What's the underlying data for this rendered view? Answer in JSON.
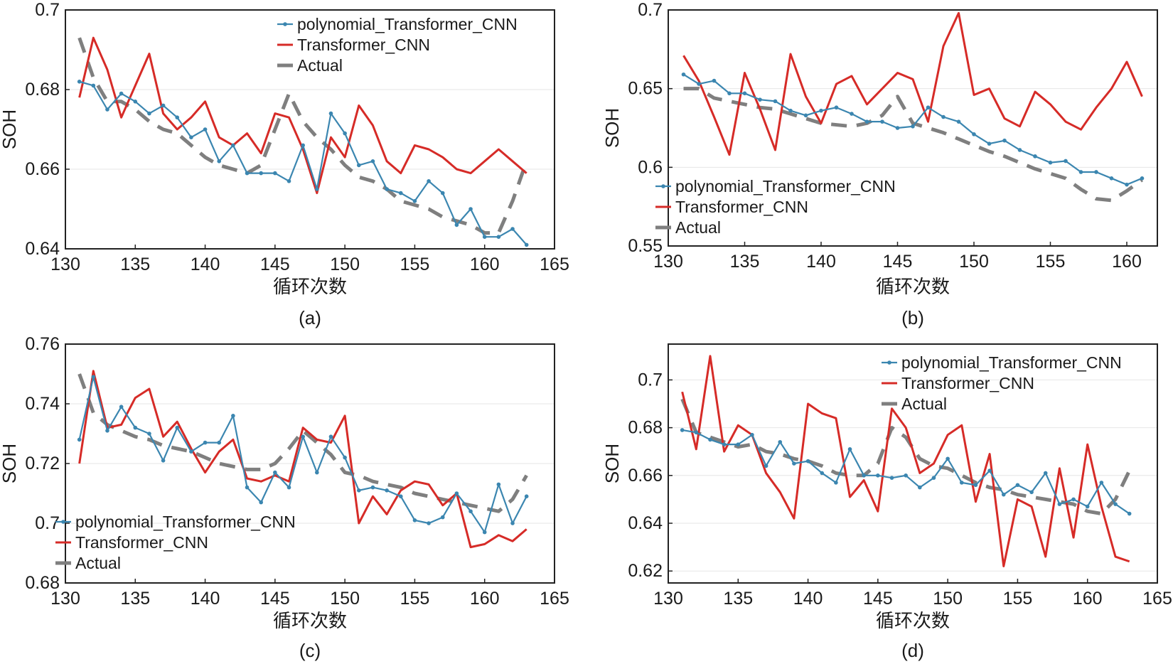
{
  "colors": {
    "model": "#3b86b0",
    "baseline": "#d62b27",
    "actual": "#7f7f7f"
  },
  "chart_data": [
    {
      "panel": "(a)",
      "type": "line",
      "xlabel": "循环次数",
      "ylabel": "SOH",
      "xlim": [
        130,
        165
      ],
      "ylim": [
        0.64,
        0.7
      ],
      "xticks": [
        "130",
        "135",
        "140",
        "145",
        "150",
        "155",
        "160",
        "165"
      ],
      "yticks": [
        "0.64",
        "0.66",
        "0.68",
        "0.7"
      ],
      "legend": "top-right",
      "series": [
        {
          "name": "polynomial_Transformer_CNN",
          "x": [
            131,
            132,
            133,
            134,
            135,
            136,
            137,
            138,
            139,
            140,
            141,
            142,
            143,
            144,
            145,
            146,
            147,
            148,
            149,
            150,
            151,
            152,
            153,
            154,
            155,
            156,
            157,
            158,
            159,
            160,
            161,
            162,
            163
          ],
          "values": [
            0.682,
            0.681,
            0.675,
            0.679,
            0.677,
            0.674,
            0.676,
            0.673,
            0.668,
            0.67,
            0.662,
            0.666,
            0.659,
            0.659,
            0.659,
            0.657,
            0.666,
            0.655,
            0.674,
            0.669,
            0.661,
            0.662,
            0.655,
            0.654,
            0.652,
            0.657,
            0.654,
            0.646,
            0.65,
            0.643,
            0.643,
            0.645,
            0.641
          ]
        },
        {
          "name": "Transformer_CNN",
          "x": [
            131,
            132,
            133,
            134,
            135,
            136,
            137,
            138,
            139,
            140,
            141,
            142,
            143,
            144,
            145,
            146,
            147,
            148,
            149,
            150,
            151,
            152,
            153,
            154,
            155,
            156,
            157,
            158,
            159,
            160,
            161,
            162,
            163
          ],
          "values": [
            0.678,
            0.693,
            0.685,
            0.673,
            0.681,
            0.689,
            0.674,
            0.67,
            0.673,
            0.677,
            0.668,
            0.666,
            0.669,
            0.664,
            0.674,
            0.673,
            0.665,
            0.654,
            0.668,
            0.663,
            0.676,
            0.671,
            0.662,
            0.659,
            0.666,
            0.665,
            0.663,
            0.66,
            0.659,
            0.662,
            0.665,
            0.662,
            0.659
          ]
        },
        {
          "name": "Actual",
          "x": [
            131,
            132,
            133,
            134,
            135,
            136,
            137,
            138,
            139,
            140,
            141,
            142,
            143,
            144,
            145,
            146,
            147,
            148,
            149,
            150,
            151,
            152,
            153,
            154,
            155,
            156,
            157,
            158,
            159,
            160,
            161,
            162,
            163
          ],
          "values": [
            0.693,
            0.683,
            0.677,
            0.677,
            0.675,
            0.672,
            0.67,
            0.669,
            0.666,
            0.663,
            0.661,
            0.66,
            0.659,
            0.661,
            0.67,
            0.679,
            0.672,
            0.668,
            0.665,
            0.661,
            0.658,
            0.657,
            0.655,
            0.652,
            0.651,
            0.65,
            0.648,
            0.647,
            0.646,
            0.644,
            0.644,
            0.652,
            0.662
          ]
        }
      ]
    },
    {
      "panel": "(b)",
      "type": "line",
      "xlabel": "循环次数",
      "ylabel": "SOH",
      "xlim": [
        130,
        162
      ],
      "ylim": [
        0.55,
        0.7
      ],
      "xticks": [
        "130",
        "135",
        "140",
        "145",
        "150",
        "155",
        "160"
      ],
      "yticks": [
        "0.55",
        "0.6",
        "0.65",
        "0.7"
      ],
      "legend": "bottom-left",
      "series": [
        {
          "name": "polynomial_Transformer_CNN",
          "x": [
            131,
            132,
            133,
            134,
            135,
            136,
            137,
            138,
            139,
            140,
            141,
            142,
            143,
            144,
            145,
            146,
            147,
            148,
            149,
            150,
            151,
            152,
            153,
            154,
            155,
            156,
            157,
            158,
            159,
            160,
            161
          ],
          "values": [
            0.659,
            0.653,
            0.655,
            0.647,
            0.647,
            0.643,
            0.642,
            0.636,
            0.633,
            0.636,
            0.638,
            0.634,
            0.629,
            0.629,
            0.625,
            0.626,
            0.638,
            0.632,
            0.629,
            0.621,
            0.615,
            0.617,
            0.611,
            0.607,
            0.603,
            0.604,
            0.597,
            0.597,
            0.593,
            0.589,
            0.593
          ]
        },
        {
          "name": "Transformer_CNN",
          "x": [
            131,
            132,
            133,
            134,
            135,
            136,
            137,
            138,
            139,
            140,
            141,
            142,
            143,
            144,
            145,
            146,
            147,
            148,
            149,
            150,
            151,
            152,
            153,
            154,
            155,
            156,
            157,
            158,
            159,
            160,
            161
          ],
          "values": [
            0.671,
            0.655,
            0.632,
            0.608,
            0.66,
            0.637,
            0.611,
            0.672,
            0.645,
            0.628,
            0.653,
            0.658,
            0.64,
            0.65,
            0.66,
            0.656,
            0.629,
            0.677,
            0.698,
            0.646,
            0.65,
            0.631,
            0.626,
            0.648,
            0.64,
            0.629,
            0.624,
            0.638,
            0.65,
            0.667,
            0.645
          ]
        },
        {
          "name": "Actual",
          "x": [
            131,
            132,
            133,
            134,
            135,
            136,
            137,
            138,
            139,
            140,
            141,
            142,
            143,
            144,
            145,
            146,
            147,
            148,
            149,
            150,
            151,
            152,
            153,
            154,
            155,
            156,
            157,
            158,
            159,
            160,
            161
          ],
          "values": [
            0.65,
            0.65,
            0.644,
            0.642,
            0.64,
            0.638,
            0.637,
            0.634,
            0.631,
            0.628,
            0.627,
            0.626,
            0.628,
            0.633,
            0.645,
            0.628,
            0.625,
            0.622,
            0.618,
            0.614,
            0.61,
            0.607,
            0.603,
            0.599,
            0.596,
            0.593,
            0.586,
            0.58,
            0.579,
            0.585,
            0.592
          ]
        }
      ]
    },
    {
      "panel": "(c)",
      "type": "line",
      "xlabel": "循环次数",
      "ylabel": "SOH",
      "xlim": [
        130,
        165
      ],
      "ylim": [
        0.68,
        0.76
      ],
      "xticks": [
        "130",
        "135",
        "140",
        "145",
        "150",
        "155",
        "160",
        "165"
      ],
      "yticks": [
        "0.68",
        "0.7",
        "0.72",
        "0.74",
        "0.76"
      ],
      "legend": "bottom-left",
      "series": [
        {
          "name": "polynomial_Transformer_CNN",
          "x": [
            131,
            132,
            133,
            134,
            135,
            136,
            137,
            138,
            139,
            140,
            141,
            142,
            143,
            144,
            145,
            146,
            147,
            148,
            149,
            150,
            151,
            152,
            153,
            154,
            155,
            156,
            157,
            158,
            159,
            160,
            161,
            162,
            163
          ],
          "values": [
            0.728,
            0.749,
            0.731,
            0.739,
            0.732,
            0.73,
            0.721,
            0.732,
            0.724,
            0.727,
            0.727,
            0.736,
            0.712,
            0.707,
            0.717,
            0.712,
            0.729,
            0.717,
            0.729,
            0.722,
            0.711,
            0.712,
            0.711,
            0.709,
            0.701,
            0.7,
            0.702,
            0.71,
            0.704,
            0.697,
            0.713,
            0.7,
            0.709
          ]
        },
        {
          "name": "Transformer_CNN",
          "x": [
            131,
            132,
            133,
            134,
            135,
            136,
            137,
            138,
            139,
            140,
            141,
            142,
            143,
            144,
            145,
            146,
            147,
            148,
            149,
            150,
            151,
            152,
            153,
            154,
            155,
            156,
            157,
            158,
            159,
            160,
            161,
            162,
            163
          ],
          "values": [
            0.72,
            0.751,
            0.732,
            0.733,
            0.742,
            0.745,
            0.729,
            0.734,
            0.725,
            0.717,
            0.724,
            0.728,
            0.715,
            0.714,
            0.716,
            0.714,
            0.732,
            0.728,
            0.727,
            0.736,
            0.7,
            0.709,
            0.703,
            0.711,
            0.714,
            0.713,
            0.706,
            0.71,
            0.692,
            0.693,
            0.696,
            0.694,
            0.698
          ]
        },
        {
          "name": "Actual",
          "x": [
            131,
            132,
            133,
            134,
            135,
            136,
            137,
            138,
            139,
            140,
            141,
            142,
            143,
            144,
            145,
            146,
            147,
            148,
            149,
            150,
            151,
            152,
            153,
            154,
            155,
            156,
            157,
            158,
            159,
            160,
            161,
            162,
            163
          ],
          "values": [
            0.75,
            0.737,
            0.733,
            0.731,
            0.729,
            0.728,
            0.726,
            0.725,
            0.724,
            0.722,
            0.72,
            0.719,
            0.718,
            0.718,
            0.72,
            0.725,
            0.731,
            0.727,
            0.723,
            0.717,
            0.716,
            0.714,
            0.713,
            0.712,
            0.71,
            0.709,
            0.708,
            0.707,
            0.706,
            0.705,
            0.704,
            0.708,
            0.716
          ]
        }
      ]
    },
    {
      "panel": "(d)",
      "type": "line",
      "xlabel": "循环次数",
      "ylabel": "SOH",
      "xlim": [
        130,
        165
      ],
      "ylim": [
        0.615,
        0.715
      ],
      "xticks": [
        "130",
        "135",
        "140",
        "145",
        "150",
        "155",
        "160",
        "165"
      ],
      "yticks": [
        "0.62",
        "0.64",
        "0.66",
        "0.68",
        "0.7"
      ],
      "legend": "top-right",
      "series": [
        {
          "name": "polynomial_Transformer_CNN",
          "x": [
            131,
            132,
            133,
            134,
            135,
            136,
            137,
            138,
            139,
            140,
            141,
            142,
            143,
            144,
            145,
            146,
            147,
            148,
            149,
            150,
            151,
            152,
            153,
            154,
            155,
            156,
            157,
            158,
            159,
            160,
            161,
            162,
            163
          ],
          "values": [
            0.679,
            0.678,
            0.675,
            0.673,
            0.673,
            0.677,
            0.664,
            0.674,
            0.665,
            0.666,
            0.661,
            0.657,
            0.671,
            0.66,
            0.66,
            0.659,
            0.66,
            0.655,
            0.659,
            0.667,
            0.657,
            0.656,
            0.662,
            0.652,
            0.656,
            0.653,
            0.661,
            0.648,
            0.65,
            0.647,
            0.657,
            0.648,
            0.644
          ]
        },
        {
          "name": "Transformer_CNN",
          "x": [
            131,
            132,
            133,
            134,
            135,
            136,
            137,
            138,
            139,
            140,
            141,
            142,
            143,
            144,
            145,
            146,
            147,
            148,
            149,
            150,
            151,
            152,
            153,
            154,
            155,
            156,
            157,
            158,
            159,
            160,
            161,
            162,
            163
          ],
          "values": [
            0.695,
            0.671,
            0.71,
            0.67,
            0.681,
            0.677,
            0.661,
            0.653,
            0.642,
            0.69,
            0.686,
            0.684,
            0.651,
            0.658,
            0.645,
            0.688,
            0.68,
            0.661,
            0.665,
            0.677,
            0.681,
            0.649,
            0.669,
            0.622,
            0.65,
            0.647,
            0.626,
            0.663,
            0.634,
            0.673,
            0.647,
            0.626,
            0.624
          ]
        },
        {
          "name": "Actual",
          "x": [
            131,
            132,
            133,
            134,
            135,
            136,
            137,
            138,
            139,
            140,
            141,
            142,
            143,
            144,
            145,
            146,
            147,
            148,
            149,
            150,
            151,
            152,
            153,
            154,
            155,
            156,
            157,
            158,
            159,
            160,
            161,
            162,
            163
          ],
          "values": [
            0.692,
            0.678,
            0.676,
            0.674,
            0.672,
            0.673,
            0.67,
            0.669,
            0.667,
            0.666,
            0.664,
            0.661,
            0.66,
            0.66,
            0.665,
            0.68,
            0.676,
            0.667,
            0.664,
            0.663,
            0.66,
            0.657,
            0.655,
            0.654,
            0.652,
            0.651,
            0.65,
            0.649,
            0.648,
            0.645,
            0.644,
            0.65,
            0.662
          ]
        }
      ]
    }
  ]
}
